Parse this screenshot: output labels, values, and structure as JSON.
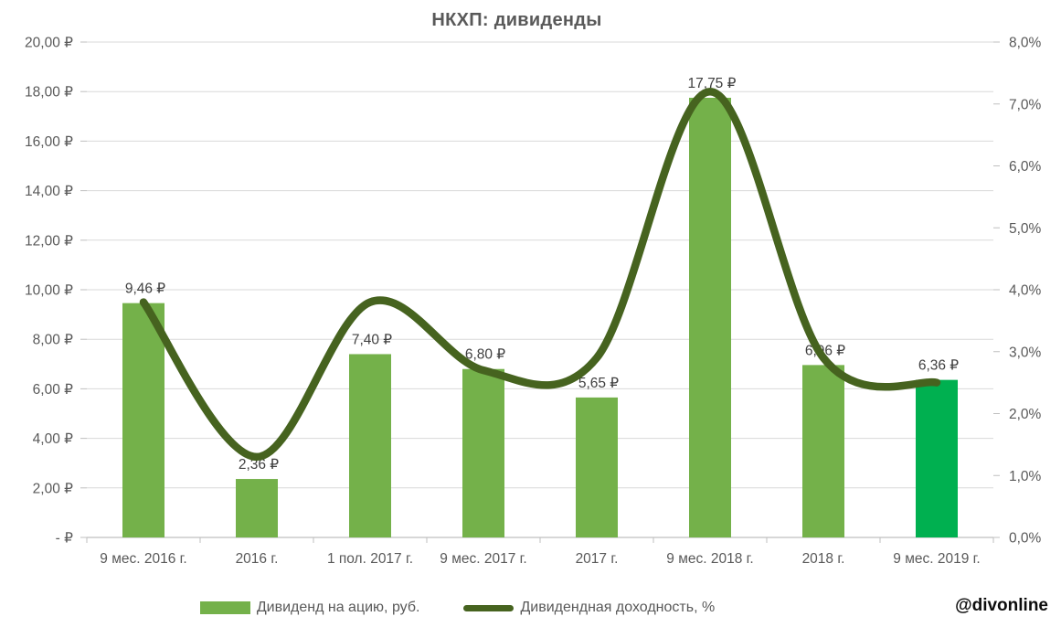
{
  "watermark": "@divonline",
  "legend": {
    "bar_label": "Дивиденд на ацию, руб.",
    "line_label": "Дивидендная доходность, %"
  },
  "colors": {
    "bar": "#74b14a",
    "bar_highlight": "#00b050",
    "line": "#46631f",
    "grid": "#d9d9d9",
    "axis_line": "#bfbfbf",
    "tick": "#bfbfbf",
    "axis_text": "#595959",
    "value_label_text": "#404040"
  },
  "chart_data": {
    "type": "bar",
    "title": "НКХП: дивиденды",
    "categories": [
      "9 мес. 2016 г.",
      "2016 г.",
      "1 пол. 2017 г.",
      "9 мес. 2017 г.",
      "2017 г.",
      "9 мес. 2018 г.",
      "2018 г.",
      "9 мес. 2019 г."
    ],
    "series": [
      {
        "name": "Дивиденд на ацию, руб.",
        "type": "bar",
        "axis": "left",
        "values": [
          9.46,
          2.36,
          7.4,
          6.8,
          5.65,
          17.75,
          6.96,
          6.36
        ],
        "value_labels": [
          "9,46 ₽",
          "2,36 ₽",
          "7,40 ₽",
          "6,80 ₽",
          "5,65 ₽",
          "17,75 ₽",
          "6,96 ₽",
          "6,36 ₽"
        ]
      },
      {
        "name": "Дивидендная доходность, %",
        "type": "line",
        "axis": "right",
        "values": [
          3.8,
          1.3,
          3.8,
          2.7,
          2.9,
          7.2,
          2.9,
          2.5
        ],
        "smooth": true
      }
    ],
    "left_axis": {
      "min": 0,
      "max": 20,
      "step": 2,
      "tick_labels": [
        "20,00 ₽",
        "18,00 ₽",
        "16,00 ₽",
        "14,00 ₽",
        "12,00 ₽",
        "10,00 ₽",
        "8,00 ₽",
        "6,00 ₽",
        "4,00 ₽",
        "2,00 ₽",
        "-  ₽"
      ]
    },
    "right_axis": {
      "min": 0,
      "max": 8,
      "step": 1,
      "tick_labels": [
        "8,0%",
        "7,0%",
        "6,0%",
        "5,0%",
        "4,0%",
        "3,0%",
        "2,0%",
        "1,0%",
        "0,0%"
      ]
    },
    "grid": true,
    "legend_position": "bottom"
  }
}
